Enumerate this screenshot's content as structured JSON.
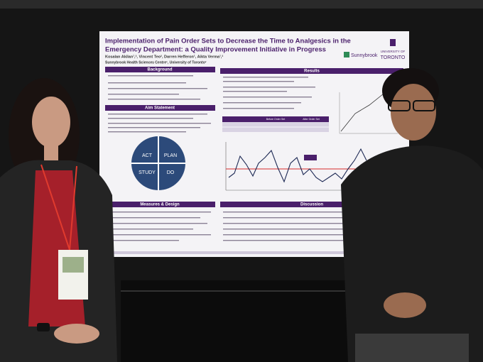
{
  "poster": {
    "title_lines": [
      "Implementation of Pain Order Sets to Decrease the Time to Analgesics in the",
      "Emergency Department: a Quality Improvement Initiative in Progress"
    ],
    "authors": "Kosalan Akilan¹,², Vincent Teo², Darren Hefferon¹, Aikta Verma¹,²",
    "affiliations": "Sunnybrook Health Sciences Centre¹, University of Toronto²",
    "logos": [
      "Sunnybrook",
      "UNIVERSITY OF",
      "TORONTO"
    ],
    "sections": {
      "background": "Background",
      "aim": "Aim Statement",
      "measures": "Measures & Design",
      "results": "Results",
      "discussion": "Discussion"
    },
    "pdsa": [
      "ACT",
      "PLAN",
      "STUDY",
      "DO"
    ],
    "table_headers": [
      "Before Order Set",
      "After Order Set"
    ]
  }
}
